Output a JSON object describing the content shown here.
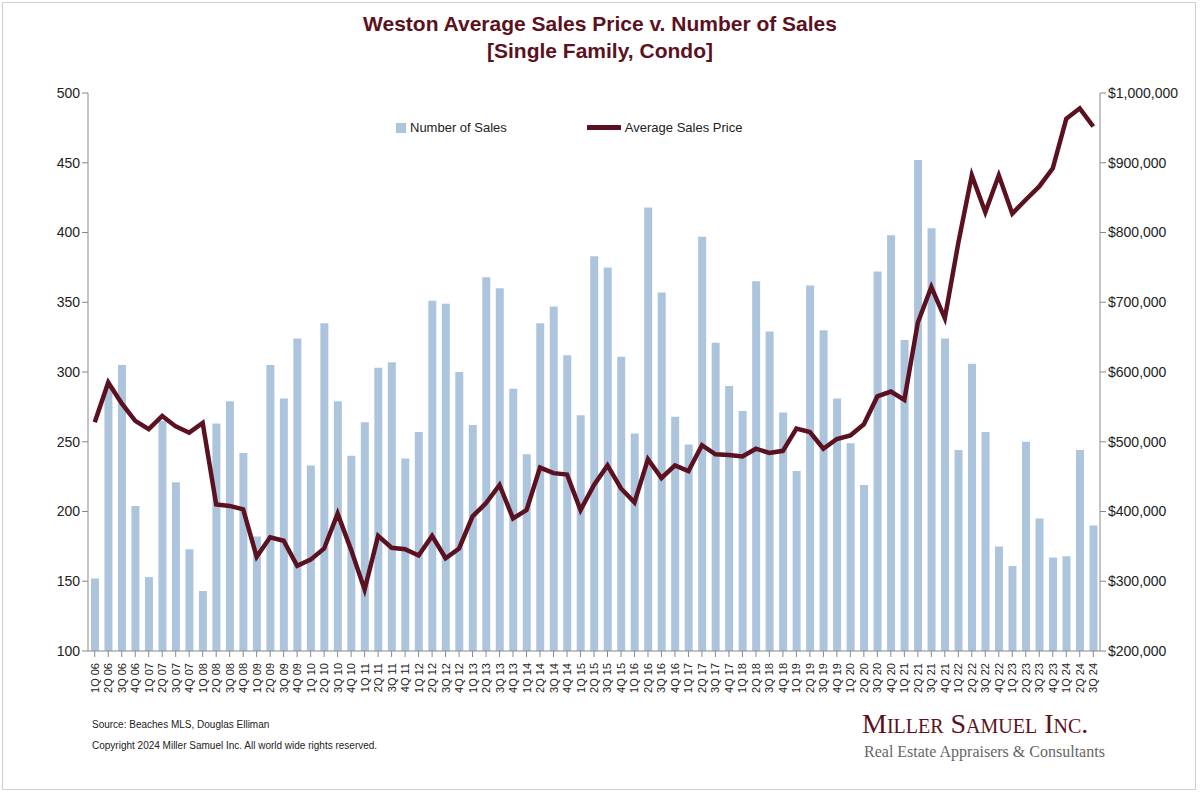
{
  "chart_data": {
    "type": "bar",
    "title": "Weston Average Sales Price v. Number of Sales",
    "subtitle": "[Single Family, Condo]",
    "annotations": [
      "Source: Beaches MLS, Douglas Elliman",
      "Copyright 2024 Miller Samuel Inc.  All world wide rights reserved.",
      "Miller Samuel Inc.",
      "Real Estate Appraisers & Consultants"
    ],
    "categories": [
      "1Q 06",
      "2Q 06",
      "3Q 06",
      "4Q 06",
      "1Q 07",
      "2Q 07",
      "3Q 07",
      "4Q 07",
      "1Q 08",
      "2Q 08",
      "3Q 08",
      "4Q 08",
      "1Q 09",
      "2Q 09",
      "3Q 09",
      "4Q 09",
      "1Q 10",
      "2Q 10",
      "3Q 10",
      "4Q 10",
      "1Q 11",
      "2Q 11",
      "3Q 11",
      "4Q 11",
      "1Q 12",
      "2Q 12",
      "3Q 12",
      "4Q 12",
      "1Q 13",
      "2Q 13",
      "3Q 13",
      "4Q 13",
      "1Q 14",
      "2Q 14",
      "3Q 14",
      "4Q 14",
      "1Q 15",
      "2Q 15",
      "3Q 15",
      "4Q 15",
      "1Q 16",
      "2Q 16",
      "3Q 16",
      "4Q 16",
      "1Q 17",
      "2Q 17",
      "3Q 17",
      "4Q 17",
      "1Q 18",
      "2Q 18",
      "3Q 18",
      "4Q 18",
      "1Q 19",
      "2Q 19",
      "3Q 19",
      "4Q 19",
      "1Q 20",
      "2Q 20",
      "3Q 20",
      "4Q 20",
      "1Q 21",
      "2Q 21",
      "3Q 21",
      "4Q 21",
      "1Q 22",
      "2Q 22",
      "3Q 22",
      "4Q 22",
      "1Q 23",
      "2Q 23",
      "3Q 23",
      "4Q 23",
      "1Q 24",
      "2Q 24",
      "3Q 24"
    ],
    "series": [
      {
        "name": "Number of Sales",
        "type": "bar",
        "color": "#adc5dc",
        "values": [
          152,
          290,
          305,
          204,
          153,
          265,
          221,
          173,
          143,
          263,
          279,
          242,
          182,
          305,
          281,
          324,
          233,
          335,
          279,
          240,
          264,
          303,
          307,
          238,
          257,
          351,
          349,
          300,
          262,
          368,
          360,
          288,
          241,
          335,
          347,
          312,
          269,
          383,
          375,
          311,
          256,
          418,
          357,
          268,
          248,
          397,
          321,
          290,
          272,
          365,
          329,
          271,
          229,
          362,
          330,
          281,
          249,
          219,
          372,
          398,
          323,
          452,
          403,
          324,
          244,
          306,
          257,
          175,
          161,
          250,
          195,
          167,
          168,
          244,
          190
        ]
      },
      {
        "name": "Average Sales Price",
        "type": "line",
        "color": "#5c1120",
        "axis": "y2",
        "values": [
          528000,
          585000,
          555000,
          530000,
          518000,
          537000,
          522000,
          513000,
          527000,
          410000,
          408000,
          403000,
          335000,
          363000,
          358000,
          322000,
          331000,
          347000,
          397000,
          345000,
          288000,
          365000,
          348000,
          346000,
          337000,
          365000,
          333000,
          347000,
          393000,
          412000,
          438000,
          390000,
          402000,
          463000,
          455000,
          453000,
          402000,
          438000,
          466000,
          433000,
          413000,
          475000,
          448000,
          466000,
          458000,
          495000,
          482000,
          481000,
          479000,
          490000,
          484000,
          487000,
          519000,
          514000,
          490000,
          504000,
          509000,
          525000,
          565000,
          572000,
          560000,
          671000,
          722000,
          677000,
          785000,
          882000,
          829000,
          882000,
          827000,
          847000,
          866000,
          892000,
          963000,
          978000,
          952000
        ]
      }
    ],
    "ylim": [
      100,
      500
    ],
    "yticks": [
      100,
      150,
      200,
      250,
      300,
      350,
      400,
      450,
      500
    ],
    "y2lim": [
      200000,
      1000000
    ],
    "y2ticks": [
      {
        "value": 200000,
        "label": "$200,000"
      },
      {
        "value": 300000,
        "label": "$300,000"
      },
      {
        "value": 400000,
        "label": "$400,000"
      },
      {
        "value": 500000,
        "label": "$500,000"
      },
      {
        "value": 600000,
        "label": "$600,000"
      },
      {
        "value": 700000,
        "label": "$700,000"
      },
      {
        "value": 800000,
        "label": "$800,000"
      },
      {
        "value": 900000,
        "label": "$900,000"
      },
      {
        "value": 1000000,
        "label": "$1,000,000"
      }
    ],
    "grid": false,
    "legend": "top"
  }
}
